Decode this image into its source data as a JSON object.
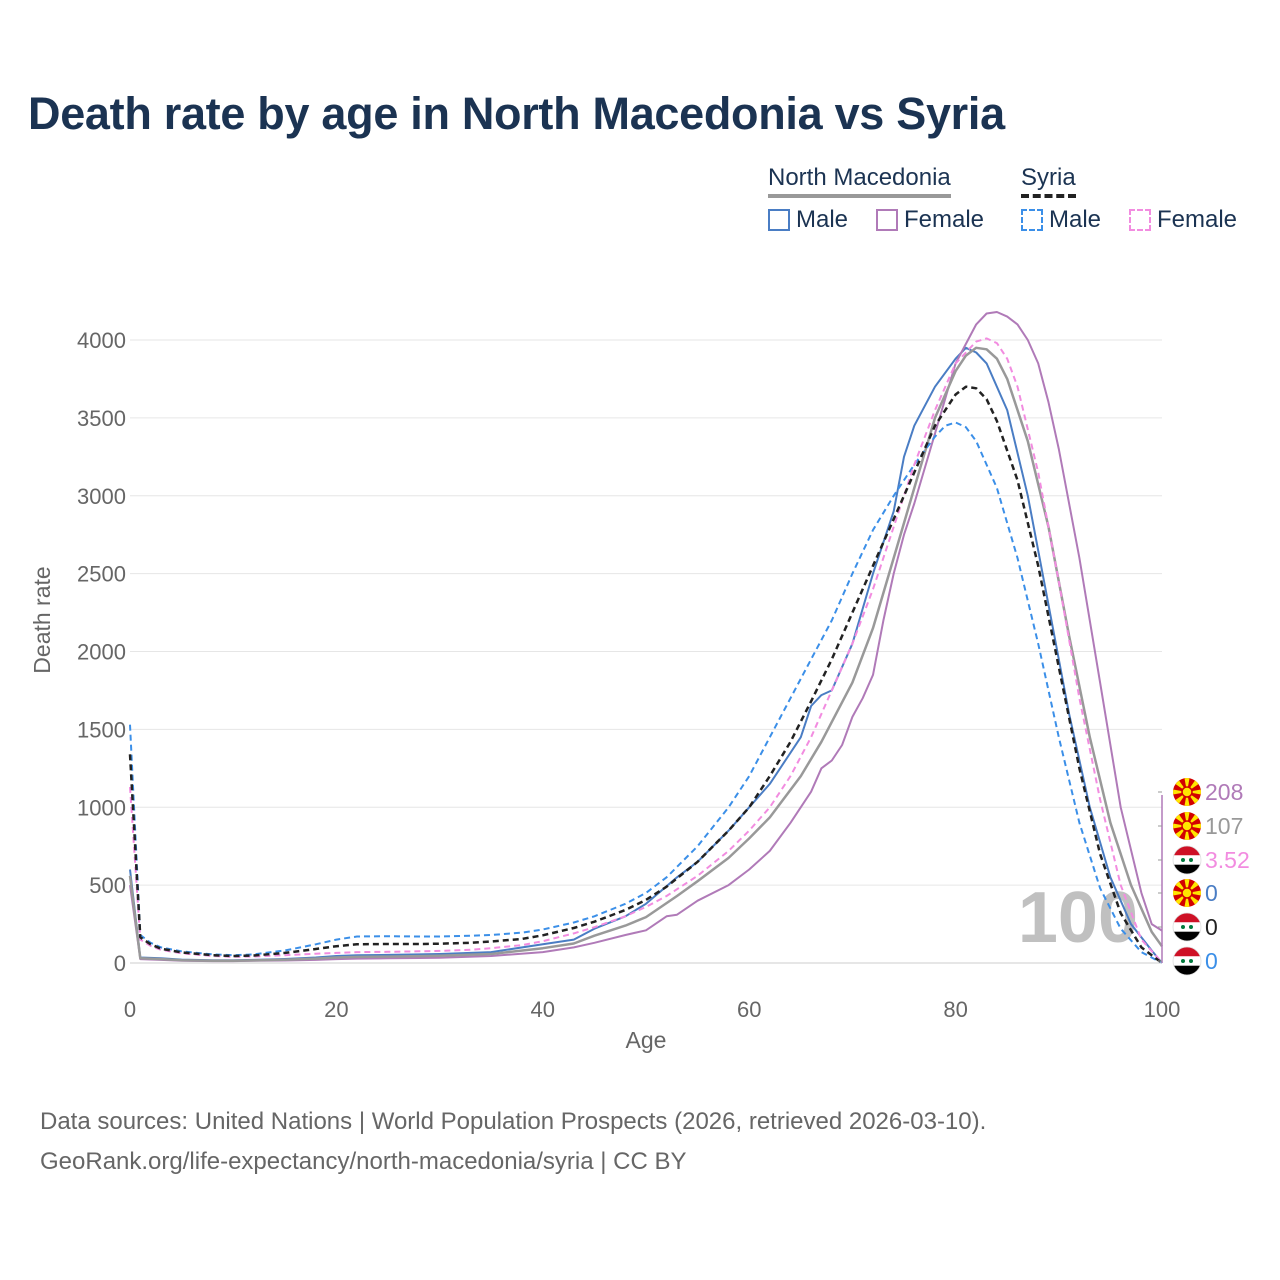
{
  "title": "Death rate by age in North Macedonia vs Syria",
  "legend": {
    "groups": [
      {
        "name": "North Macedonia",
        "line_color": "#999999",
        "line_style": "solid"
      },
      {
        "name": "Syria",
        "line_color": "#222222",
        "line_style": "dashed"
      }
    ],
    "items": [
      {
        "label": "Male",
        "color": "#4a7dc4",
        "style": "solid"
      },
      {
        "label": "Female",
        "color": "#b07ab8",
        "style": "solid"
      },
      {
        "label": "Male",
        "color": "#3b8fe8",
        "style": "dashed"
      },
      {
        "label": "Female",
        "color": "#f28ce0",
        "style": "dashed"
      }
    ]
  },
  "year_watermark": "100",
  "end_labels": [
    {
      "value": "208",
      "color": "#b07ab8",
      "flag": "north-macedonia"
    },
    {
      "value": "107",
      "color": "#999999",
      "flag": "north-macedonia"
    },
    {
      "value": "3.52",
      "color": "#f28ce0",
      "flag": "syria"
    },
    {
      "value": "0",
      "color": "#4a7dc4",
      "flag": "north-macedonia"
    },
    {
      "value": "0",
      "color": "#222222",
      "flag": "syria"
    },
    {
      "value": "0",
      "color": "#3b8fe8",
      "flag": "syria"
    }
  ],
  "footer": {
    "line1": "Data sources: United Nations | World Population Prospects (2026, retrieved 2026-03-10).",
    "line2": "GeoRank.org/life-expectancy/north-macedonia/syria | CC BY"
  },
  "chart_data": {
    "type": "line",
    "xlabel": "Age",
    "ylabel": "Death rate",
    "xlim": [
      0,
      100
    ],
    "ylim": [
      0,
      4200
    ],
    "xticks": [
      0,
      20,
      40,
      60,
      80,
      100
    ],
    "yticks": [
      0,
      500,
      1000,
      1500,
      2000,
      2500,
      3000,
      3500,
      4000
    ],
    "series": [
      {
        "name": "North Macedonia Male",
        "color": "#4a7dc4",
        "dash": false,
        "width": 2,
        "points": [
          [
            0,
            600
          ],
          [
            1,
            35
          ],
          [
            3,
            30
          ],
          [
            5,
            22
          ],
          [
            8,
            18
          ],
          [
            10,
            18
          ],
          [
            12,
            20
          ],
          [
            15,
            26
          ],
          [
            18,
            35
          ],
          [
            20,
            45
          ],
          [
            22,
            50
          ],
          [
            25,
            52
          ],
          [
            28,
            55
          ],
          [
            30,
            58
          ],
          [
            35,
            70
          ],
          [
            40,
            120
          ],
          [
            43,
            150
          ],
          [
            45,
            220
          ],
          [
            48,
            300
          ],
          [
            50,
            380
          ],
          [
            53,
            550
          ],
          [
            55,
            650
          ],
          [
            58,
            850
          ],
          [
            60,
            1000
          ],
          [
            62,
            1150
          ],
          [
            65,
            1450
          ],
          [
            66,
            1650
          ],
          [
            67,
            1720
          ],
          [
            68,
            1750
          ],
          [
            70,
            2050
          ],
          [
            72,
            2500
          ],
          [
            74,
            2900
          ],
          [
            75,
            3250
          ],
          [
            76,
            3450
          ],
          [
            78,
            3700
          ],
          [
            80,
            3880
          ],
          [
            81,
            3950
          ],
          [
            82,
            3920
          ],
          [
            83,
            3850
          ],
          [
            85,
            3550
          ],
          [
            87,
            3000
          ],
          [
            89,
            2300
          ],
          [
            91,
            1600
          ],
          [
            93,
            1000
          ],
          [
            95,
            550
          ],
          [
            97,
            250
          ],
          [
            99,
            80
          ],
          [
            100,
            0
          ]
        ]
      },
      {
        "name": "North Macedonia Female",
        "color": "#b07ab8",
        "dash": false,
        "width": 2,
        "points": [
          [
            0,
            500
          ],
          [
            1,
            25
          ],
          [
            3,
            20
          ],
          [
            5,
            15
          ],
          [
            8,
            12
          ],
          [
            10,
            12
          ],
          [
            12,
            14
          ],
          [
            15,
            16
          ],
          [
            18,
            20
          ],
          [
            20,
            25
          ],
          [
            22,
            28
          ],
          [
            25,
            30
          ],
          [
            28,
            32
          ],
          [
            30,
            34
          ],
          [
            35,
            45
          ],
          [
            40,
            70
          ],
          [
            43,
            100
          ],
          [
            45,
            130
          ],
          [
            48,
            180
          ],
          [
            50,
            210
          ],
          [
            52,
            300
          ],
          [
            53,
            310
          ],
          [
            55,
            400
          ],
          [
            58,
            500
          ],
          [
            60,
            600
          ],
          [
            62,
            720
          ],
          [
            64,
            900
          ],
          [
            66,
            1100
          ],
          [
            67,
            1250
          ],
          [
            68,
            1300
          ],
          [
            69,
            1400
          ],
          [
            70,
            1580
          ],
          [
            71,
            1700
          ],
          [
            72,
            1850
          ],
          [
            73,
            2200
          ],
          [
            74,
            2500
          ],
          [
            75,
            2750
          ],
          [
            76,
            2950
          ],
          [
            78,
            3400
          ],
          [
            80,
            3850
          ],
          [
            82,
            4100
          ],
          [
            83,
            4170
          ],
          [
            84,
            4180
          ],
          [
            85,
            4150
          ],
          [
            86,
            4100
          ],
          [
            87,
            4000
          ],
          [
            88,
            3850
          ],
          [
            89,
            3600
          ],
          [
            90,
            3300
          ],
          [
            92,
            2600
          ],
          [
            94,
            1800
          ],
          [
            96,
            1000
          ],
          [
            98,
            450
          ],
          [
            99,
            250
          ],
          [
            100,
            208
          ]
        ]
      },
      {
        "name": "North Macedonia Total",
        "color": "#999999",
        "dash": false,
        "width": 2.5,
        "points": [
          [
            0,
            560
          ],
          [
            1,
            30
          ],
          [
            3,
            25
          ],
          [
            5,
            18
          ],
          [
            8,
            15
          ],
          [
            10,
            15
          ],
          [
            12,
            17
          ],
          [
            15,
            21
          ],
          [
            18,
            28
          ],
          [
            20,
            35
          ],
          [
            22,
            39
          ],
          [
            25,
            41
          ],
          [
            28,
            44
          ],
          [
            30,
            46
          ],
          [
            35,
            58
          ],
          [
            40,
            95
          ],
          [
            43,
            125
          ],
          [
            45,
            175
          ],
          [
            48,
            240
          ],
          [
            50,
            295
          ],
          [
            53,
            430
          ],
          [
            55,
            525
          ],
          [
            58,
            675
          ],
          [
            60,
            800
          ],
          [
            62,
            935
          ],
          [
            65,
            1200
          ],
          [
            67,
            1420
          ],
          [
            70,
            1800
          ],
          [
            72,
            2150
          ],
          [
            74,
            2600
          ],
          [
            76,
            3050
          ],
          [
            78,
            3500
          ],
          [
            80,
            3800
          ],
          [
            81,
            3900
          ],
          [
            82,
            3950
          ],
          [
            83,
            3940
          ],
          [
            84,
            3880
          ],
          [
            85,
            3750
          ],
          [
            87,
            3350
          ],
          [
            89,
            2800
          ],
          [
            91,
            2100
          ],
          [
            93,
            1450
          ],
          [
            95,
            900
          ],
          [
            97,
            500
          ],
          [
            99,
            200
          ],
          [
            100,
            107
          ]
        ]
      },
      {
        "name": "Syria Male",
        "color": "#3b8fe8",
        "dash": true,
        "width": 2,
        "points": [
          [
            0,
            1530
          ],
          [
            1,
            180
          ],
          [
            2,
            130
          ],
          [
            3,
            100
          ],
          [
            5,
            75
          ],
          [
            8,
            55
          ],
          [
            10,
            50
          ],
          [
            12,
            55
          ],
          [
            15,
            80
          ],
          [
            18,
            120
          ],
          [
            20,
            150
          ],
          [
            22,
            170
          ],
          [
            25,
            172
          ],
          [
            28,
            170
          ],
          [
            30,
            170
          ],
          [
            33,
            175
          ],
          [
            35,
            180
          ],
          [
            38,
            195
          ],
          [
            40,
            215
          ],
          [
            43,
            260
          ],
          [
            45,
            300
          ],
          [
            48,
            380
          ],
          [
            50,
            450
          ],
          [
            52,
            550
          ],
          [
            55,
            750
          ],
          [
            58,
            1000
          ],
          [
            60,
            1200
          ],
          [
            62,
            1450
          ],
          [
            64,
            1700
          ],
          [
            66,
            1950
          ],
          [
            68,
            2200
          ],
          [
            70,
            2500
          ],
          [
            72,
            2780
          ],
          [
            74,
            3000
          ],
          [
            76,
            3200
          ],
          [
            78,
            3380
          ],
          [
            79,
            3450
          ],
          [
            80,
            3470
          ],
          [
            81,
            3440
          ],
          [
            82,
            3350
          ],
          [
            84,
            3050
          ],
          [
            86,
            2600
          ],
          [
            88,
            2050
          ],
          [
            90,
            1450
          ],
          [
            92,
            900
          ],
          [
            94,
            480
          ],
          [
            96,
            220
          ],
          [
            98,
            70
          ],
          [
            100,
            0
          ]
        ]
      },
      {
        "name": "Syria Female",
        "color": "#f28ce0",
        "dash": true,
        "width": 2,
        "points": [
          [
            0,
            1130
          ],
          [
            1,
            150
          ],
          [
            2,
            110
          ],
          [
            3,
            85
          ],
          [
            5,
            62
          ],
          [
            8,
            45
          ],
          [
            10,
            40
          ],
          [
            12,
            42
          ],
          [
            15,
            50
          ],
          [
            18,
            60
          ],
          [
            20,
            65
          ],
          [
            22,
            70
          ],
          [
            25,
            72
          ],
          [
            28,
            75
          ],
          [
            30,
            78
          ],
          [
            33,
            85
          ],
          [
            35,
            95
          ],
          [
            38,
            115
          ],
          [
            40,
            140
          ],
          [
            43,
            190
          ],
          [
            45,
            230
          ],
          [
            48,
            300
          ],
          [
            50,
            360
          ],
          [
            52,
            430
          ],
          [
            55,
            560
          ],
          [
            58,
            720
          ],
          [
            60,
            850
          ],
          [
            62,
            1000
          ],
          [
            64,
            1200
          ],
          [
            66,
            1450
          ],
          [
            68,
            1750
          ],
          [
            70,
            2050
          ],
          [
            72,
            2400
          ],
          [
            74,
            2800
          ],
          [
            76,
            3200
          ],
          [
            78,
            3550
          ],
          [
            80,
            3850
          ],
          [
            82,
            3990
          ],
          [
            83,
            4010
          ],
          [
            84,
            3980
          ],
          [
            85,
            3880
          ],
          [
            86,
            3700
          ],
          [
            88,
            3150
          ],
          [
            90,
            2450
          ],
          [
            92,
            1700
          ],
          [
            94,
            1050
          ],
          [
            96,
            500
          ],
          [
            98,
            150
          ],
          [
            100,
            3.52
          ]
        ]
      },
      {
        "name": "Syria Total",
        "color": "#222222",
        "dash": true,
        "width": 2.5,
        "points": [
          [
            0,
            1340
          ],
          [
            1,
            165
          ],
          [
            2,
            120
          ],
          [
            3,
            92
          ],
          [
            5,
            68
          ],
          [
            8,
            50
          ],
          [
            10,
            45
          ],
          [
            12,
            48
          ],
          [
            15,
            65
          ],
          [
            18,
            90
          ],
          [
            20,
            108
          ],
          [
            22,
            120
          ],
          [
            25,
            122
          ],
          [
            28,
            122
          ],
          [
            30,
            124
          ],
          [
            33,
            130
          ],
          [
            35,
            138
          ],
          [
            38,
            155
          ],
          [
            40,
            178
          ],
          [
            43,
            225
          ],
          [
            45,
            265
          ],
          [
            48,
            340
          ],
          [
            50,
            405
          ],
          [
            52,
            490
          ],
          [
            55,
            650
          ],
          [
            58,
            850
          ],
          [
            60,
            1000
          ],
          [
            62,
            1200
          ],
          [
            64,
            1420
          ],
          [
            66,
            1680
          ],
          [
            68,
            1950
          ],
          [
            70,
            2250
          ],
          [
            72,
            2550
          ],
          [
            74,
            2850
          ],
          [
            76,
            3150
          ],
          [
            78,
            3450
          ],
          [
            80,
            3650
          ],
          [
            81,
            3700
          ],
          [
            82,
            3690
          ],
          [
            83,
            3620
          ],
          [
            84,
            3480
          ],
          [
            86,
            3100
          ],
          [
            88,
            2550
          ],
          [
            90,
            1900
          ],
          [
            92,
            1250
          ],
          [
            94,
            700
          ],
          [
            96,
            320
          ],
          [
            98,
            100
          ],
          [
            100,
            0
          ]
        ]
      }
    ]
  }
}
